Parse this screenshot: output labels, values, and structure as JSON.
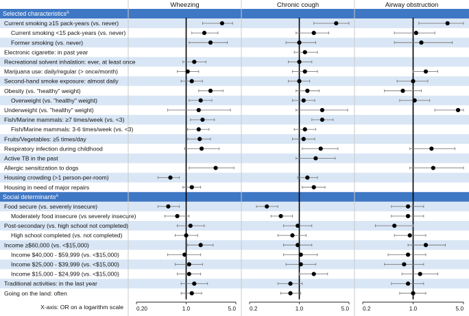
{
  "chart_data": {
    "type": "forest",
    "xlabel": "X-axis: OR on a logarithm scale",
    "panels": [
      {
        "title": "Wheezing",
        "xlim": [
          0.2,
          5.0
        ],
        "ticks": [
          {
            "v": 0.2,
            "label": "0.20"
          },
          {
            "v": 1.0,
            "label": "1.0"
          },
          {
            "v": 5.0,
            "label": "5.0"
          }
        ]
      },
      {
        "title": "Chronic cough",
        "xlim": [
          0.2,
          5.0
        ],
        "ticks": [
          {
            "v": 0.2,
            "label": "0.2"
          },
          {
            "v": 1.0,
            "label": "1.0"
          },
          {
            "v": 5.0,
            "label": "5.0"
          }
        ]
      },
      {
        "title": "Airway obstruction",
        "xlim": [
          0.2,
          5.0
        ],
        "ticks": [
          {
            "v": 0.2,
            "label": "0.2"
          },
          {
            "v": 1.0,
            "label": "1.0"
          },
          {
            "v": 5.0,
            "label": "5.0"
          }
        ]
      }
    ],
    "sections": [
      {
        "title": "Selected characteristics",
        "sup": "A",
        "rows": [
          {
            "label": "Current smoking ≥15 pack-years (vs. never)",
            "indent": 0,
            "est": [
              [
                3.2,
                1.7,
                4.5
              ],
              [
                3.3,
                1.6,
                5.0
              ],
              [
                3.0,
                1.2,
                5.0
              ]
            ]
          },
          {
            "label": "Current smoking <15 pack-years (vs. never)",
            "indent": 1,
            "est": [
              [
                1.8,
                1.2,
                2.8
              ],
              [
                1.6,
                0.9,
                2.6
              ],
              [
                1.1,
                0.55,
                2.0
              ]
            ]
          },
          {
            "label": "Former smoking (vs. never)",
            "indent": 1,
            "est": [
              [
                2.2,
                1.1,
                3.8
              ],
              [
                1.0,
                0.65,
                1.7
              ],
              [
                1.3,
                0.55,
                3.5
              ]
            ]
          },
          {
            "label": "Electronic cigarette: in past year",
            "indent": 0,
            "est": [
              [
                null,
                null,
                null
              ],
              [
                1.2,
                0.85,
                1.8
              ],
              [
                null,
                null,
                null
              ]
            ]
          },
          {
            "label": "Recreational solvent inhalation: ever, at least once",
            "indent": 0,
            "est": [
              [
                1.3,
                0.9,
                1.9
              ],
              [
                1.0,
                0.7,
                1.5
              ],
              [
                null,
                null,
                null
              ]
            ]
          },
          {
            "label": "Marijuana use: daily/regular (> once/month)",
            "indent": 0,
            "est": [
              [
                1.05,
                0.75,
                1.5
              ],
              [
                1.2,
                0.8,
                1.8
              ],
              [
                1.5,
                1.0,
                2.2
              ]
            ]
          },
          {
            "label": "Second-hand smoke exposure: almost daily",
            "indent": 0,
            "est": [
              [
                1.2,
                0.85,
                1.7
              ],
              [
                1.0,
                0.7,
                1.4
              ],
              [
                1.0,
                0.6,
                1.6
              ]
            ]
          },
          {
            "label": "Obesity (vs. \"healthy\" weight)",
            "indent": 0,
            "est": [
              [
                2.2,
                1.5,
                3.3
              ],
              [
                1.3,
                0.9,
                1.9
              ],
              [
                0.72,
                0.4,
                1.3
              ]
            ]
          },
          {
            "label": "Overweight (vs. \"healthy\" weight)",
            "indent": 1,
            "est": [
              [
                1.6,
                1.1,
                2.3
              ],
              [
                1.15,
                0.8,
                1.65
              ],
              [
                1.05,
                0.65,
                1.7
              ]
            ]
          },
          {
            "label": "Underweight (vs. \"healthy\" weight)",
            "indent": 0,
            "est": [
              [
                1.5,
                0.55,
                4.2
              ],
              [
                2.1,
                0.9,
                4.8
              ],
              [
                4.2,
                2.0,
                5.0
              ]
            ]
          },
          {
            "label": "Fish/Marine mammals: ≥7 times/week (vs. <3)",
            "indent": 0,
            "est": [
              [
                1.7,
                1.15,
                2.5
              ],
              [
                2.1,
                1.5,
                3.0
              ],
              [
                null,
                null,
                null
              ]
            ]
          },
          {
            "label": "Fish/Marine mammals: 3-6 times/week (vs. <3)",
            "indent": 1,
            "est": [
              [
                1.5,
                1.05,
                2.1
              ],
              [
                1.2,
                0.85,
                1.7
              ],
              [
                null,
                null,
                null
              ]
            ]
          },
          {
            "label": "Fruits/Vegetables: ≥5 times/day",
            "indent": 0,
            "est": [
              [
                1.55,
                1.05,
                2.2
              ],
              [
                1.15,
                0.8,
                1.65
              ],
              [
                null,
                null,
                null
              ]
            ]
          },
          {
            "label": "Respiratory infection during childhood",
            "indent": 0,
            "est": [
              [
                1.65,
                0.95,
                2.9
              ],
              [
                2.0,
                1.1,
                3.5
              ],
              [
                1.8,
                0.9,
                3.8
              ]
            ]
          },
          {
            "label": "Active TB in the past",
            "indent": 0,
            "est": [
              [
                null,
                null,
                null
              ],
              [
                1.7,
                0.9,
                3.2
              ],
              [
                null,
                null,
                null
              ]
            ]
          },
          {
            "label": "Allergic sensitization to dogs",
            "indent": 0,
            "est": [
              [
                2.6,
                1.1,
                4.7
              ],
              [
                null,
                null,
                null
              ],
              [
                1.9,
                0.9,
                5.0
              ]
            ]
          },
          {
            "label": "Housing crowding (>1 person-per-room)",
            "indent": 0,
            "est": [
              [
                0.6,
                0.4,
                0.8
              ],
              [
                1.3,
                0.95,
                1.8
              ],
              [
                null,
                null,
                null
              ]
            ]
          },
          {
            "label": "Housing in need of major repairs",
            "indent": 0,
            "est": [
              [
                1.2,
                0.9,
                1.6
              ],
              [
                1.6,
                1.1,
                2.3
              ],
              [
                null,
                null,
                null
              ]
            ]
          }
        ]
      },
      {
        "title": "Social determinants",
        "sup": "A",
        "rows": [
          {
            "label": "Food secure (vs. severely insecure)",
            "indent": 0,
            "est": [
              [
                0.56,
                0.4,
                0.8
              ],
              [
                0.35,
                0.25,
                0.5
              ],
              [
                0.85,
                0.5,
                1.4
              ]
            ]
          },
          {
            "label": "Moderately food insecure (vs severely insecure)",
            "indent": 1,
            "est": [
              [
                0.75,
                0.5,
                1.1
              ],
              [
                0.55,
                0.4,
                0.8
              ],
              [
                0.85,
                0.5,
                1.4
              ]
            ]
          },
          {
            "label": "Post-secondary (vs. high school not completed)",
            "indent": 0,
            "est": [
              [
                1.15,
                0.75,
                1.8
              ],
              [
                0.95,
                0.6,
                1.5
              ],
              [
                0.55,
                0.3,
                1.0
              ]
            ]
          },
          {
            "label": "High school completed (vs. not completed)",
            "indent": 1,
            "est": [
              [
                1.0,
                0.7,
                1.45
              ],
              [
                0.8,
                0.5,
                1.25
              ],
              [
                0.9,
                0.55,
                1.5
              ]
            ]
          },
          {
            "label": "Income ≥$60,000 (vs. <$15,000)",
            "indent": 0,
            "est": [
              [
                1.6,
                1.05,
                2.4
              ],
              [
                0.95,
                0.6,
                1.5
              ],
              [
                1.5,
                0.85,
                2.8
              ]
            ]
          },
          {
            "label": "Income $40,000 - $59,999 (vs. <$15,000)",
            "indent": 1,
            "est": [
              [
                0.95,
                0.55,
                1.6
              ],
              [
                1.05,
                0.6,
                1.8
              ],
              [
                0.85,
                0.45,
                1.5
              ]
            ]
          },
          {
            "label": "Income $25,000 - $39,999 (vs. <$15,000)",
            "indent": 1,
            "est": [
              [
                1.1,
                0.7,
                1.7
              ],
              [
                1.05,
                0.65,
                1.7
              ],
              [
                0.75,
                0.4,
                1.4
              ]
            ]
          },
          {
            "label": "Income $15,000 - $24,999 (vs. <$15,000)",
            "indent": 1,
            "est": [
              [
                1.1,
                0.75,
                1.6
              ],
              [
                1.6,
                1.0,
                2.5
              ],
              [
                1.25,
                0.7,
                2.2
              ]
            ]
          },
          {
            "label": "Traditional activities: in the last year",
            "indent": 0,
            "est": [
              [
                1.3,
                0.85,
                2.0
              ],
              [
                0.75,
                0.5,
                1.1
              ],
              [
                0.85,
                0.5,
                1.4
              ]
            ]
          },
          {
            "label": "Going on the land: often",
            "indent": 0,
            "est": [
              [
                1.2,
                0.85,
                1.65
              ],
              [
                0.75,
                0.55,
                1.05
              ],
              [
                1.0,
                0.65,
                1.5
              ]
            ]
          }
        ]
      }
    ]
  }
}
